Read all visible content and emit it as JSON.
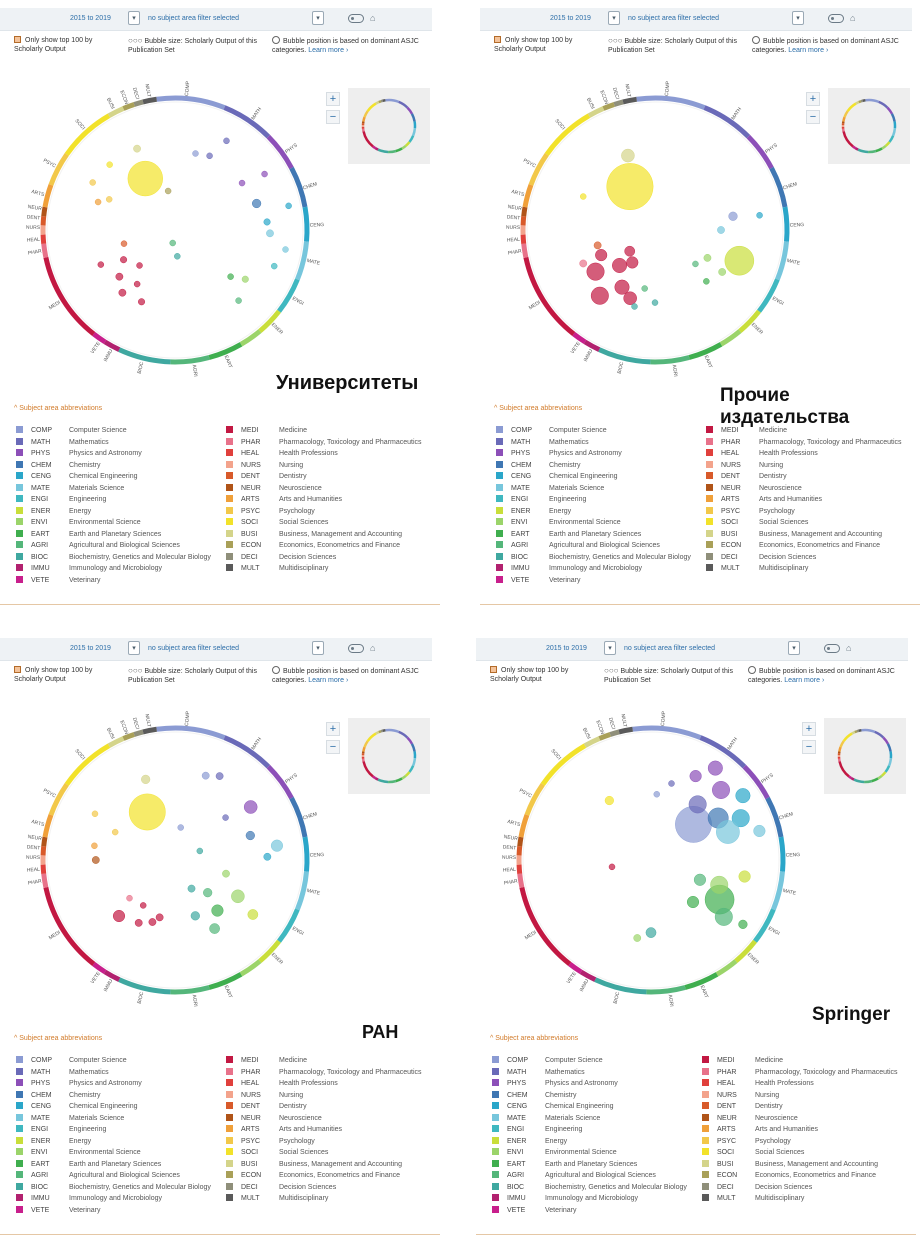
{
  "ui": {
    "year_range": "2015 to 2019",
    "filter": "no subject area filter selected",
    "top100_label": "Only show top 100 by Scholarly Output",
    "bubble_size_label": "Bubble size: Scholarly Output of this Publication Set",
    "position_label": "Bubble position is based on dominant ASJC categories.",
    "learn_more": "Learn more ›",
    "legend_toggle": "^ Subject area abbreviations",
    "zoom_in": "+",
    "zoom_out": "−",
    "bubble_icon": "○○○",
    "home_icon": "⌂"
  },
  "captions": [
    "Университеты",
    "Прочие издательства",
    "РАН",
    "Springer"
  ],
  "subject_areas": [
    {
      "abbr": "COMP",
      "name": "Computer Science",
      "color": "#8b9bd3"
    },
    {
      "abbr": "MATH",
      "name": "Mathematics",
      "color": "#6a6ab8"
    },
    {
      "abbr": "PHYS",
      "name": "Physics and Astronomy",
      "color": "#8c4fb8"
    },
    {
      "abbr": "CHEM",
      "name": "Chemistry",
      "color": "#3f77b3"
    },
    {
      "abbr": "CENG",
      "name": "Chemical Engineering",
      "color": "#2aa6c9"
    },
    {
      "abbr": "MATE",
      "name": "Materials Science",
      "color": "#77c6dc"
    },
    {
      "abbr": "ENGI",
      "name": "Engineering",
      "color": "#3fb8c0"
    },
    {
      "abbr": "ENER",
      "name": "Energy",
      "color": "#c9de3a"
    },
    {
      "abbr": "ENVI",
      "name": "Environmental Science",
      "color": "#9bd46a"
    },
    {
      "abbr": "EART",
      "name": "Earth and Planetary Sciences",
      "color": "#3fae4e"
    },
    {
      "abbr": "AGRI",
      "name": "Agricultural and Biological Sciences",
      "color": "#54b67a"
    },
    {
      "abbr": "BIOC",
      "name": "Biochemistry, Genetics and Molecular Biology",
      "color": "#3fa8a0"
    },
    {
      "abbr": "IMMU",
      "name": "Immunology and Microbiology",
      "color": "#b2216f"
    },
    {
      "abbr": "VETE",
      "name": "Veterinary",
      "color": "#c81f8c"
    },
    {
      "abbr": "MEDI",
      "name": "Medicine",
      "color": "#c21842"
    },
    {
      "abbr": "PHAR",
      "name": "Pharmacology, Toxicology and Pharmaceutics",
      "color": "#e8728a"
    },
    {
      "abbr": "HEAL",
      "name": "Health Professions",
      "color": "#e0403c"
    },
    {
      "abbr": "NURS",
      "name": "Nursing",
      "color": "#f3a38c"
    },
    {
      "abbr": "DENT",
      "name": "Dentistry",
      "color": "#d85a2a"
    },
    {
      "abbr": "NEUR",
      "name": "Neuroscience",
      "color": "#b05418"
    },
    {
      "abbr": "ARTS",
      "name": "Arts and Humanities",
      "color": "#f0a03a"
    },
    {
      "abbr": "PSYC",
      "name": "Psychology",
      "color": "#f2c84a"
    },
    {
      "abbr": "SOCI",
      "name": "Social Sciences",
      "color": "#f2e22a"
    },
    {
      "abbr": "BUSI",
      "name": "Business, Management and Accounting",
      "color": "#d4d48a"
    },
    {
      "abbr": "ECON",
      "name": "Economics, Econometrics and Finance",
      "color": "#a9a058"
    },
    {
      "abbr": "DECI",
      "name": "Decision Sciences",
      "color": "#8f8f7a"
    },
    {
      "abbr": "MULT",
      "name": "Multidisciplinary",
      "color": "#5a5a5a"
    }
  ],
  "circle_labels": [
    "COMP",
    "MATH",
    "PHYS",
    "CHEM",
    "CENG",
    "MATE",
    "ENGI",
    "ENER",
    "EART",
    "AGRI",
    "BIOC",
    "IMMU VETE",
    "MEDI",
    "PHAR",
    "HEAL",
    "NURS DENT NEUR",
    "ARTS",
    "PSYC",
    "SOCI",
    "BUSI",
    "ECON DECI MULT"
  ]
}
